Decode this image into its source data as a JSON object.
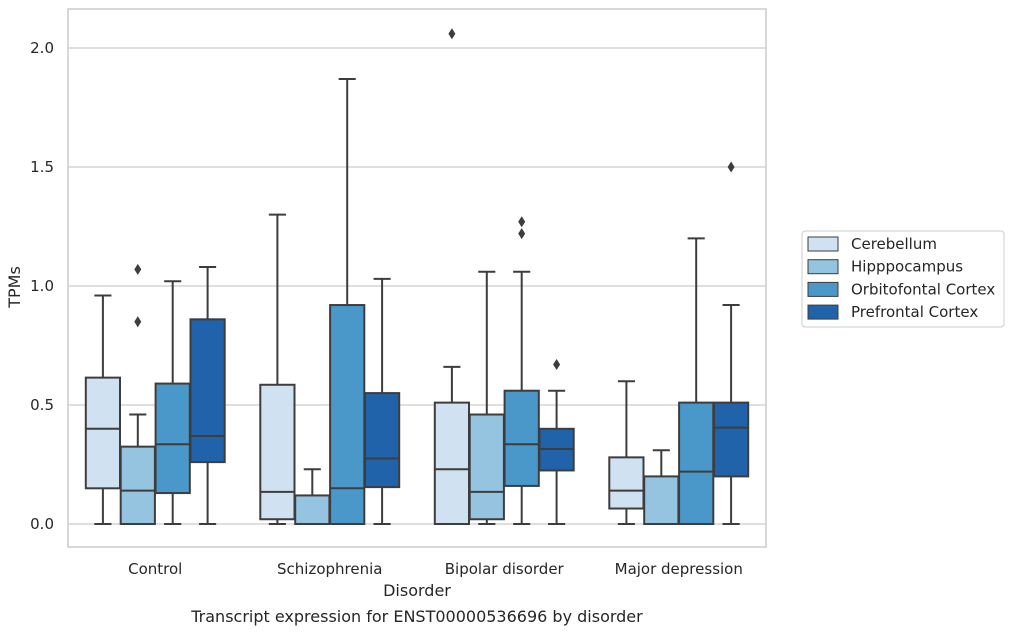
{
  "chart_data": {
    "type": "boxplot",
    "caption": "Transcript expression for ENST00000536696 by disorder",
    "xlabel": "Disorder",
    "ylabel": "TPMs",
    "ylim": [
      -0.1,
      2.17
    ],
    "yticks": [
      0.0,
      0.5,
      1.0,
      1.5,
      2.0
    ],
    "ytick_labels": [
      "0.0",
      "0.5",
      "1.0",
      "1.5",
      "2.0"
    ],
    "grid": "horizontal",
    "legend_position": "right",
    "categories": [
      "Control",
      "Schizophrenia",
      "Bipolar disorder",
      "Major depression"
    ],
    "series": [
      {
        "name": "Cerebellum",
        "color": "#d0e1f2",
        "boxes": [
          {
            "whisker_low": 0.0,
            "q1": 0.15,
            "median": 0.4,
            "q3": 0.615,
            "whisker_high": 0.96,
            "outliers": []
          },
          {
            "whisker_low": 0.0,
            "q1": 0.02,
            "median": 0.135,
            "q3": 0.585,
            "whisker_high": 1.3,
            "outliers": []
          },
          {
            "whisker_low": 0.0,
            "q1": 0.0,
            "median": 0.23,
            "q3": 0.51,
            "whisker_high": 0.66,
            "outliers": [
              2.06
            ]
          },
          {
            "whisker_low": 0.0,
            "q1": 0.065,
            "median": 0.14,
            "q3": 0.28,
            "whisker_high": 0.6,
            "outliers": []
          }
        ]
      },
      {
        "name": "Hipppocampus",
        "color": "#94c4df",
        "boxes": [
          {
            "whisker_low": 0.0,
            "q1": 0.0,
            "median": 0.14,
            "q3": 0.325,
            "whisker_high": 0.46,
            "outliers": [
              0.85,
              1.07
            ]
          },
          {
            "whisker_low": 0.0,
            "q1": 0.0,
            "median": 0.0,
            "q3": 0.12,
            "whisker_high": 0.23,
            "outliers": []
          },
          {
            "whisker_low": 0.0,
            "q1": 0.02,
            "median": 0.135,
            "q3": 0.46,
            "whisker_high": 1.06,
            "outliers": []
          },
          {
            "whisker_low": 0.0,
            "q1": 0.0,
            "median": 0.0,
            "q3": 0.2,
            "whisker_high": 0.31,
            "outliers": []
          }
        ]
      },
      {
        "name": "Orbitofontal Cortex",
        "color": "#4a98c9",
        "boxes": [
          {
            "whisker_low": 0.0,
            "q1": 0.13,
            "median": 0.335,
            "q3": 0.59,
            "whisker_high": 1.02,
            "outliers": []
          },
          {
            "whisker_low": 0.0,
            "q1": 0.0,
            "median": 0.15,
            "q3": 0.92,
            "whisker_high": 1.87,
            "outliers": []
          },
          {
            "whisker_low": 0.0,
            "q1": 0.16,
            "median": 0.335,
            "q3": 0.56,
            "whisker_high": 1.06,
            "outliers": [
              1.22,
              1.27
            ]
          },
          {
            "whisker_low": 0.0,
            "q1": 0.0,
            "median": 0.22,
            "q3": 0.51,
            "whisker_high": 1.2,
            "outliers": []
          }
        ]
      },
      {
        "name": "Prefrontal Cortex",
        "color": "#2163aa",
        "boxes": [
          {
            "whisker_low": 0.0,
            "q1": 0.26,
            "median": 0.37,
            "q3": 0.86,
            "whisker_high": 1.08,
            "outliers": []
          },
          {
            "whisker_low": 0.0,
            "q1": 0.155,
            "median": 0.275,
            "q3": 0.55,
            "whisker_high": 1.03,
            "outliers": []
          },
          {
            "whisker_low": 0.0,
            "q1": 0.225,
            "median": 0.315,
            "q3": 0.4,
            "whisker_high": 0.56,
            "outliers": [
              0.67
            ]
          },
          {
            "whisker_low": 0.0,
            "q1": 0.2,
            "median": 0.405,
            "q3": 0.51,
            "whisker_high": 0.92,
            "outliers": [
              1.5
            ]
          }
        ]
      }
    ]
  }
}
